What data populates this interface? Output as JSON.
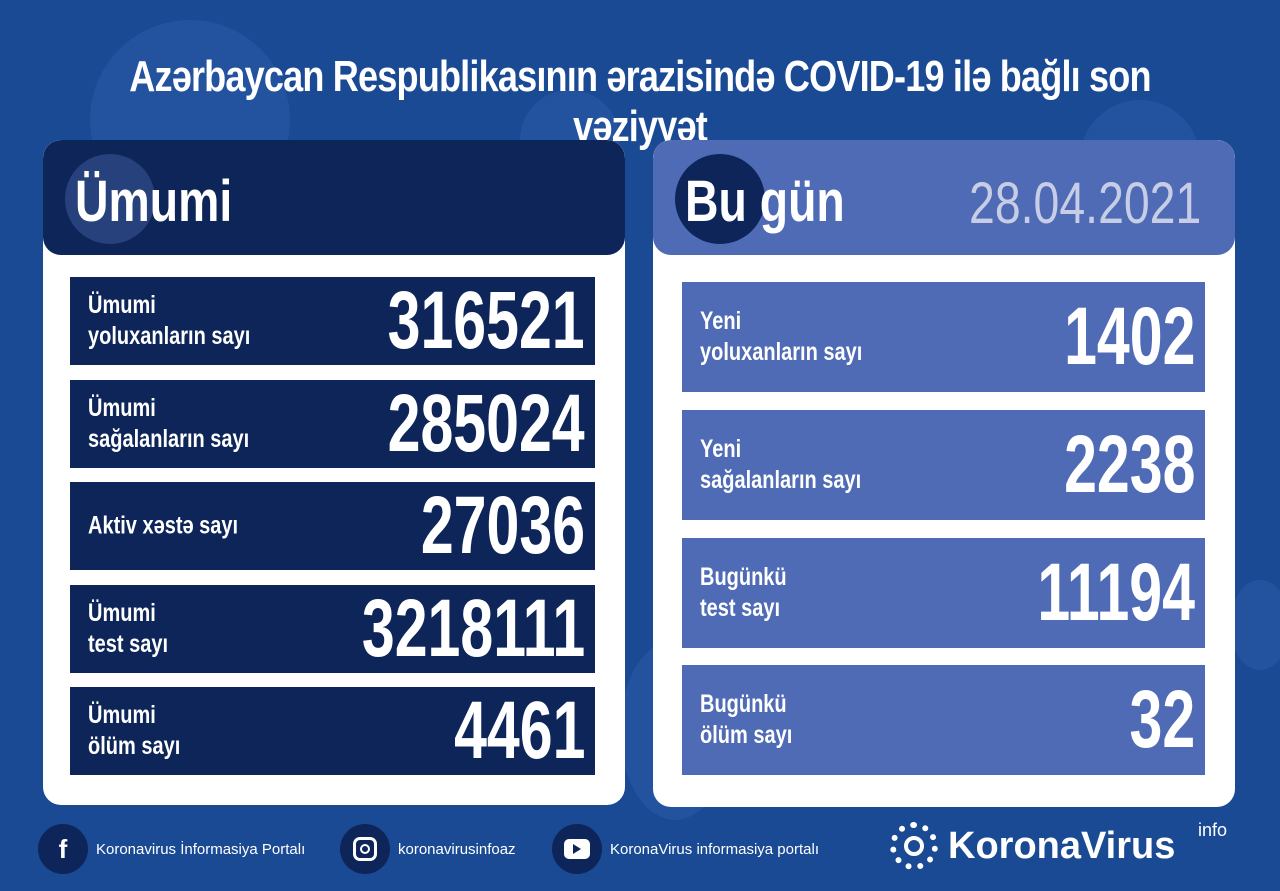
{
  "title": "Azərbaycan Respublikasının ərazisində COVID-19 ilə bağlı son vəziyyət",
  "colors": {
    "background": "#1a4a94",
    "total_panel": "#0d2559",
    "today_panel": "#4f6bb5"
  },
  "total": {
    "heading": "Ümumi",
    "rows": [
      {
        "label1": "Ümumi",
        "label2": "yoluxanların sayı",
        "value": "316521"
      },
      {
        "label1": "Ümumi",
        "label2": "sağalanların sayı",
        "value": "285024"
      },
      {
        "label1": "Aktiv xəstə sayı",
        "label2": "",
        "value": "27036"
      },
      {
        "label1": "Ümumi",
        "label2": "test sayı",
        "value": "3218111"
      },
      {
        "label1": "Ümumi",
        "label2": "ölüm sayı",
        "value": "4461"
      }
    ]
  },
  "today": {
    "heading": "Bu gün",
    "date": "28.04.2021",
    "rows": [
      {
        "label1": "Yeni",
        "label2": "yoluxanların sayı",
        "value": "1402"
      },
      {
        "label1": "Yeni",
        "label2": "sağalanların sayı",
        "value": "2238"
      },
      {
        "label1": "Bugünkü",
        "label2": "test sayı",
        "value": "11194"
      },
      {
        "label1": "Bugünkü",
        "label2": "ölüm sayı",
        "value": "32"
      }
    ]
  },
  "footer": {
    "facebook": {
      "icon": "facebook-icon",
      "label": "Koronavirus İnformasiya Portalı"
    },
    "instagram": {
      "icon": "instagram-icon",
      "label": "koronavirusinfoaz"
    },
    "youtube": {
      "icon": "youtube-icon",
      "label": "KoronaVirus informasiya portalı"
    },
    "logo": {
      "text": "KoronaVirus",
      "sup": "info"
    }
  }
}
